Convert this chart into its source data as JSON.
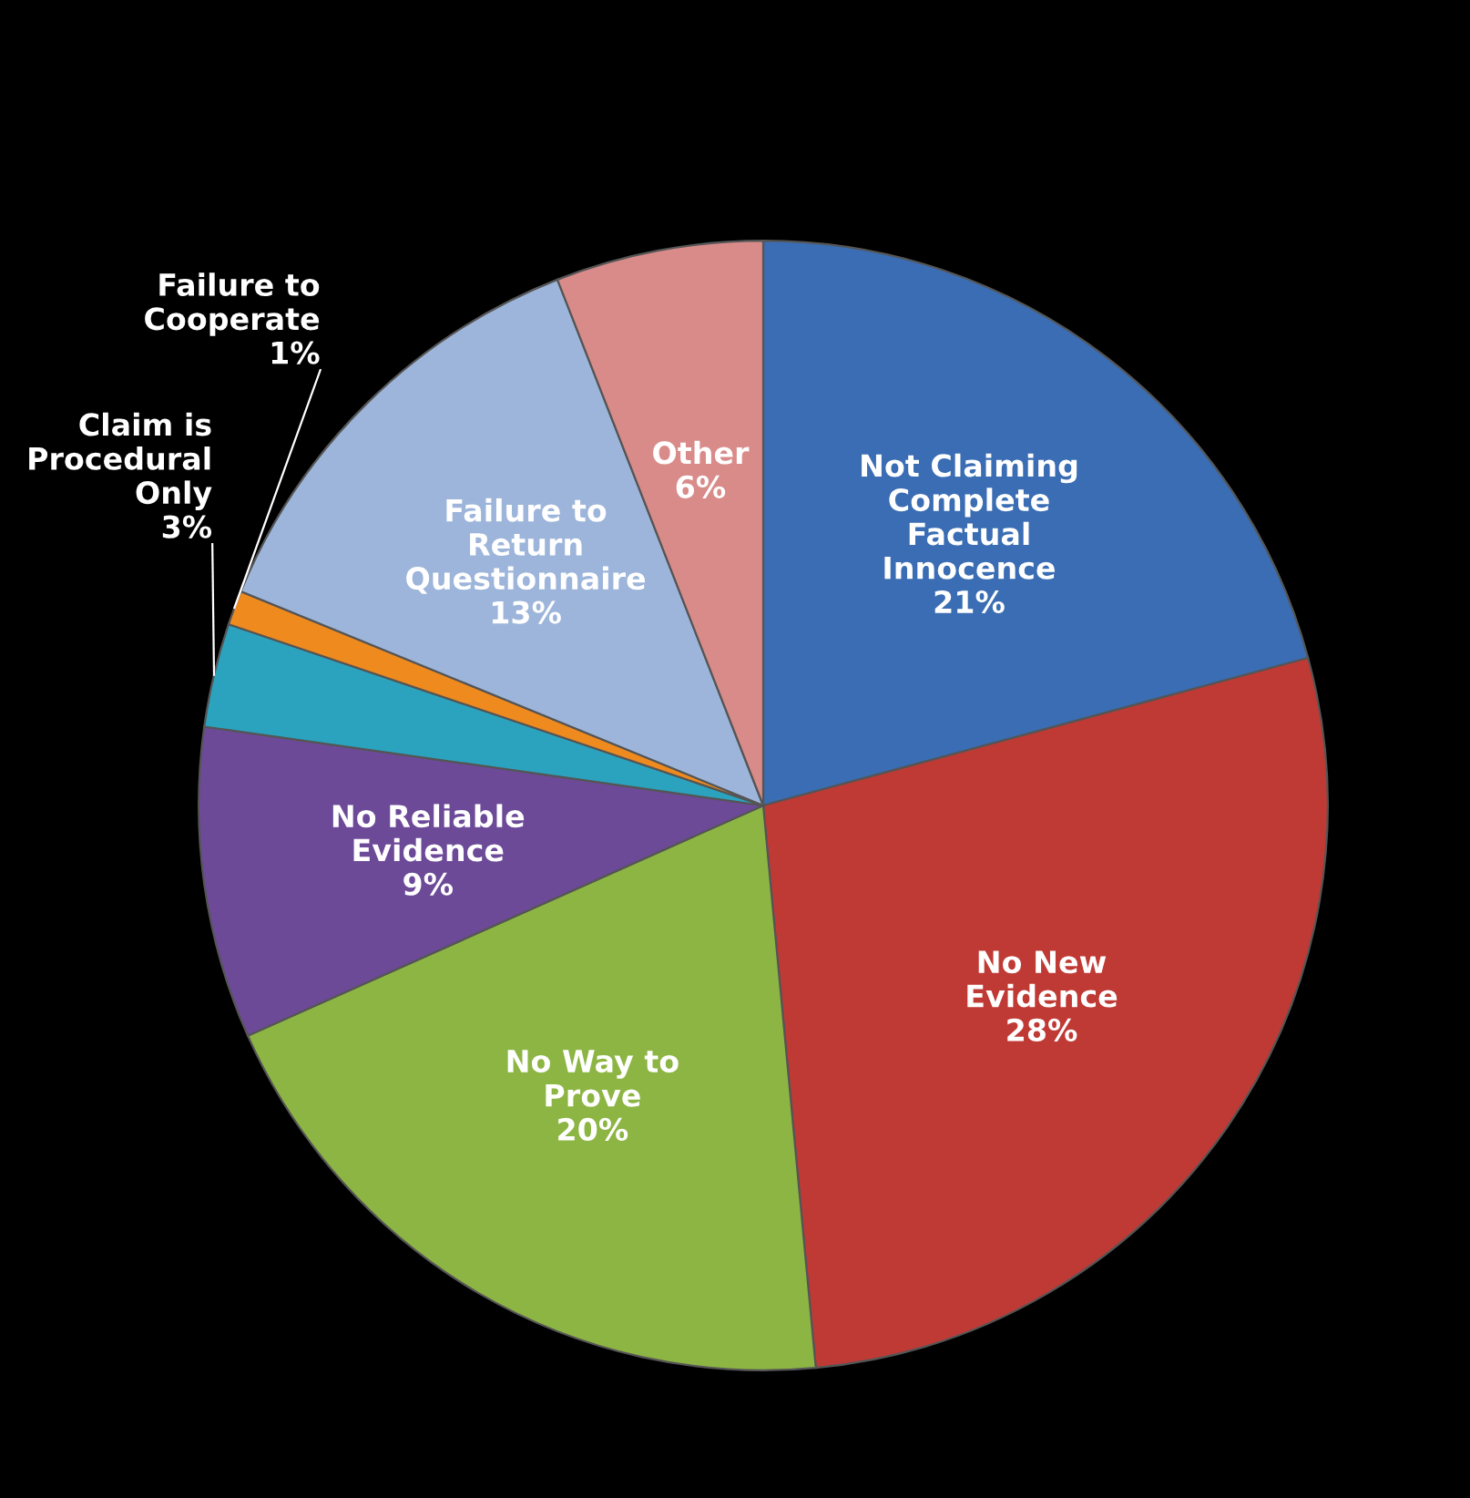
{
  "chart_data": {
    "type": "pie",
    "categories": [
      "Not Claiming\nComplete\nFactual\nInnocence",
      "No New\nEvidence",
      "No Way to\nProve",
      "No Reliable\nEvidence",
      "Claim is\nProcedural\nOnly",
      "Failure to\nCooperate",
      "Failure to\nReturn\nQuestionnaire",
      "Other"
    ],
    "values": [
      21,
      28,
      20,
      9,
      3,
      1,
      13,
      6
    ],
    "value_labels": [
      "21%",
      "28%",
      "20%",
      "9%",
      "3%",
      "1%",
      "13%",
      "6%"
    ],
    "colors": [
      "#3a6db3",
      "#c03a35",
      "#8db543",
      "#6c4a98",
      "#2ba3bf",
      "#ef8a1e",
      "#9db5da",
      "#d98b8a"
    ],
    "legend": false
  }
}
